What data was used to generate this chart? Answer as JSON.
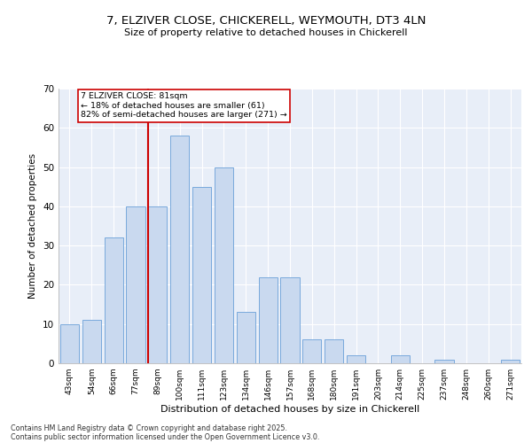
{
  "title1": "7, ELZIVER CLOSE, CHICKERELL, WEYMOUTH, DT3 4LN",
  "title2": "Size of property relative to detached houses in Chickerell",
  "xlabel": "Distribution of detached houses by size in Chickerell",
  "ylabel": "Number of detached properties",
  "categories": [
    "43sqm",
    "54sqm",
    "66sqm",
    "77sqm",
    "89sqm",
    "100sqm",
    "111sqm",
    "123sqm",
    "134sqm",
    "146sqm",
    "157sqm",
    "168sqm",
    "180sqm",
    "191sqm",
    "203sqm",
    "214sqm",
    "225sqm",
    "237sqm",
    "248sqm",
    "260sqm",
    "271sqm"
  ],
  "values": [
    10,
    11,
    32,
    40,
    40,
    58,
    45,
    50,
    13,
    22,
    22,
    6,
    6,
    2,
    0,
    2,
    0,
    1,
    0,
    0,
    1
  ],
  "bar_color": "#c9d9ef",
  "bar_edge_color": "#6a9fd8",
  "vline_color": "#cc0000",
  "annotation_text": "7 ELZIVER CLOSE: 81sqm\n← 18% of detached houses are smaller (61)\n82% of semi-detached houses are larger (271) →",
  "annotation_box_color": "white",
  "annotation_box_edge": "#cc0000",
  "ylim": [
    0,
    70
  ],
  "yticks": [
    0,
    10,
    20,
    30,
    40,
    50,
    60,
    70
  ],
  "bg_color": "#e8eef8",
  "grid_color": "white",
  "footer1": "Contains HM Land Registry data © Crown copyright and database right 2025.",
  "footer2": "Contains public sector information licensed under the Open Government Licence v3.0."
}
